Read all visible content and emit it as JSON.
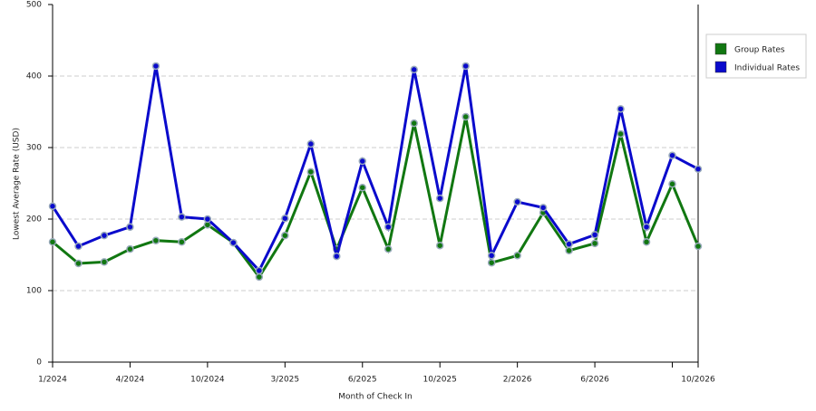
{
  "chart_data": {
    "type": "line",
    "xlabel": "Month of Check In",
    "ylabel": "Lowest Average Rate (USD)",
    "categories": [
      "1/2024",
      null,
      null,
      "4/2024",
      null,
      null,
      "10/2024",
      null,
      null,
      "3/2025",
      null,
      null,
      "6/2025",
      null,
      null,
      "10/2025",
      null,
      null,
      "2/2026",
      null,
      null,
      "6/2026",
      null,
      null,
      null,
      "10/2026"
    ],
    "series": [
      {
        "name": "Group Rates",
        "color": "#117711",
        "values": [
          168,
          138,
          140,
          158,
          170,
          168,
          192,
          167,
          119,
          177,
          266,
          158,
          244,
          158,
          334,
          163,
          343,
          139,
          149,
          209,
          156,
          166,
          319,
          168,
          249,
          162
        ]
      },
      {
        "name": "Individual Rates",
        "color": "#0a0acc",
        "values": [
          218,
          162,
          177,
          189,
          414,
          203,
          200,
          167,
          128,
          201,
          305,
          148,
          281,
          189,
          409,
          229,
          414,
          149,
          224,
          216,
          165,
          178,
          354,
          189,
          289,
          270
        ]
      }
    ],
    "ylim": [
      0,
      500
    ],
    "yticks": [
      0,
      100,
      200,
      300,
      400,
      500
    ],
    "grid": true,
    "legend": "right"
  }
}
